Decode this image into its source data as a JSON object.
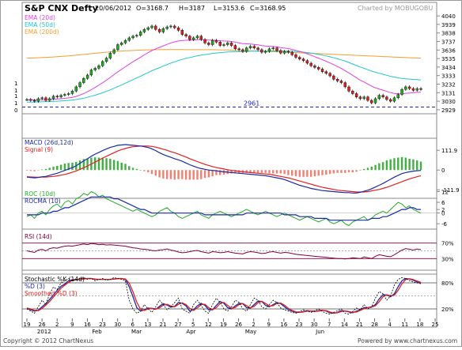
{
  "header": {
    "title": "S&P CNX Defty",
    "date": "20/06/2012",
    "open": "O=3168.7",
    "high": "H=3187",
    "low": "L=3153.6",
    "close": "C=3168.95",
    "credit": "Charted by MOBUGOBU"
  },
  "footer": {
    "copyright": "Copyright © 2012 ChartNexus",
    "powered": "Powered by www.chartnexus.com"
  },
  "colors": {
    "ema20": "#e040e0",
    "ema50": "#20c8c8",
    "ema200": "#f0a030",
    "macd": "#1a2aa8",
    "signal": "#e02020",
    "hist_pos": "#40b040",
    "hist_neg": "#f08070",
    "roc": "#22aa22",
    "rocma": "#1a2aa8",
    "rsi": "#800040",
    "stoch_k": "#000000",
    "stoch_d": "#1a2aa8",
    "stoch_sd": "#e02020",
    "up": "#22aa22",
    "down": "#e02020",
    "support": "#2020c0"
  },
  "chart_data": {
    "type": "line",
    "x_ticks": [
      "19",
      "26",
      "2",
      "9",
      "16",
      "23",
      "30",
      "6",
      "13",
      "21",
      "27",
      "5",
      "12",
      "19",
      "26",
      "2",
      "9",
      "16",
      "23",
      "30",
      "7",
      "14",
      "21",
      "28",
      "4",
      "11",
      "18",
      "25"
    ],
    "x_month_labels": [
      "2012",
      "Feb",
      "Mar",
      "Apr",
      "May",
      "Jun"
    ],
    "price_panel": {
      "legend": [
        "EMA (20d)",
        "EMA (50d)",
        "EMA (200d)"
      ],
      "y_ticks": [
        4040,
        3939,
        3838,
        3737,
        3636,
        3535,
        3434,
        3333,
        3232,
        3131,
        3030,
        2929
      ],
      "ylim": [
        2900,
        4060
      ],
      "left_axis_labels": [
        "1",
        "1",
        "1",
        "1",
        "0"
      ],
      "support_label": "2961",
      "support_value": 2961,
      "closes": [
        3050,
        3040,
        3030,
        3060,
        3070,
        3040,
        3060,
        3090,
        3080,
        3100,
        3110,
        3120,
        3150,
        3200,
        3250,
        3300,
        3340,
        3400,
        3420,
        3450,
        3500,
        3540,
        3600,
        3640,
        3700,
        3720,
        3750,
        3780,
        3800,
        3810,
        3850,
        3880,
        3900,
        3920,
        3880,
        3850,
        3890,
        3910,
        3920,
        3900,
        3870,
        3820,
        3800,
        3760,
        3780,
        3800,
        3760,
        3720,
        3700,
        3750,
        3730,
        3690,
        3700,
        3720,
        3690,
        3650,
        3640,
        3620,
        3660,
        3680,
        3660,
        3640,
        3610,
        3620,
        3650,
        3660,
        3630,
        3600,
        3620,
        3610,
        3580,
        3550,
        3530,
        3510,
        3480,
        3450,
        3430,
        3410,
        3380,
        3360,
        3330,
        3290,
        3270,
        3250,
        3200,
        3150,
        3120,
        3080,
        3060,
        3080,
        3040,
        3010,
        3060,
        3100,
        3080,
        3050,
        3030,
        3070,
        3110,
        3170,
        3200,
        3180,
        3160,
        3180,
        3168.95
      ],
      "ema20": [
        3045,
        3046,
        3045,
        3046,
        3048,
        3048,
        3049,
        3052,
        3055,
        3059,
        3064,
        3069,
        3076,
        3087,
        3103,
        3121,
        3142,
        3167,
        3193,
        3221,
        3249,
        3279,
        3312,
        3344,
        3378,
        3408,
        3438,
        3468,
        3497,
        3524,
        3551,
        3578,
        3605,
        3630,
        3650,
        3667,
        3685,
        3703,
        3720,
        3733,
        3743,
        3748,
        3751,
        3752,
        3755,
        3760,
        3760,
        3757,
        3753,
        3753,
        3751,
        3746,
        3743,
        3742,
        3737,
        3729,
        3721,
        3712,
        3709,
        3707,
        3703,
        3697,
        3689,
        3683,
        3680,
        3678,
        3673,
        3665,
        3659,
        3653,
        3644,
        3632,
        3620,
        3607,
        3591,
        3575,
        3557,
        3540,
        3521,
        3503,
        3484,
        3462,
        3440,
        3418,
        3392,
        3365,
        3337,
        3308,
        3279,
        3257,
        3233,
        3208,
        3189,
        3175,
        3161,
        3146,
        3132,
        3123,
        3117,
        3117,
        3124,
        3127,
        3130,
        3135,
        3138
      ],
      "ema50": [
        3020,
        3020,
        3021,
        3022,
        3024,
        3025,
        3026,
        3028,
        3030,
        3033,
        3036,
        3039,
        3044,
        3050,
        3058,
        3066,
        3076,
        3089,
        3101,
        3115,
        3130,
        3146,
        3164,
        3183,
        3203,
        3222,
        3243,
        3264,
        3285,
        3306,
        3326,
        3348,
        3369,
        3391,
        3410,
        3428,
        3446,
        3463,
        3481,
        3497,
        3512,
        3525,
        3537,
        3547,
        3557,
        3568,
        3576,
        3583,
        3588,
        3596,
        3601,
        3605,
        3609,
        3613,
        3615,
        3617,
        3617,
        3618,
        3619,
        3622,
        3623,
        3624,
        3623,
        3623,
        3624,
        3625,
        3625,
        3624,
        3624,
        3624,
        3622,
        3619,
        3615,
        3611,
        3606,
        3599,
        3592,
        3584,
        3576,
        3566,
        3556,
        3544,
        3532,
        3519,
        3504,
        3488,
        3471,
        3453,
        3435,
        3419,
        3403,
        3386,
        3373,
        3361,
        3349,
        3337,
        3325,
        3315,
        3307,
        3300,
        3296,
        3292,
        3288,
        3285,
        3282
      ],
      "ema200": [
        3540,
        3541,
        3543,
        3545,
        3547,
        3549,
        3551,
        3554,
        3557,
        3560,
        3563,
        3567,
        3571,
        3575,
        3579,
        3584,
        3588,
        3593,
        3598,
        3602,
        3606,
        3610,
        3614,
        3618,
        3622,
        3624,
        3627,
        3629,
        3631,
        3633,
        3635,
        3637,
        3638,
        3639,
        3640,
        3640,
        3641,
        3641,
        3642,
        3642,
        3642,
        3641,
        3640,
        3640,
        3640,
        3640,
        3640,
        3640,
        3640,
        3640,
        3639,
        3638,
        3637,
        3636,
        3634,
        3632,
        3630,
        3628,
        3627,
        3626,
        3625,
        3624,
        3622,
        3620,
        3618,
        3617,
        3615,
        3613,
        3611,
        3609,
        3607,
        3605,
        3603,
        3601,
        3599,
        3597,
        3595,
        3593,
        3591,
        3589,
        3587,
        3585,
        3583,
        3581,
        3579,
        3577,
        3575,
        3573,
        3571,
        3569,
        3567,
        3565,
        3563,
        3561,
        3559,
        3557,
        3555,
        3553,
        3551,
        3549,
        3547,
        3545,
        3543,
        3542,
        3540
      ]
    },
    "macd_panel": {
      "legend": [
        "MACD (26d,12d)",
        "Signal (9)"
      ],
      "y_ticks": [
        111.9,
        0,
        -111.9
      ],
      "ylim": [
        -160,
        180
      ],
      "macd": [
        -40,
        -42,
        -44,
        -42,
        -38,
        -36,
        -30,
        -24,
        -18,
        -10,
        -2,
        6,
        14,
        24,
        38,
        52,
        64,
        78,
        90,
        100,
        110,
        120,
        128,
        134,
        140,
        142,
        144,
        142,
        140,
        138,
        136,
        132,
        128,
        120,
        110,
        98,
        88,
        80,
        72,
        64,
        58,
        50,
        40,
        30,
        22,
        14,
        8,
        4,
        0,
        -2,
        -4,
        -8,
        -10,
        -12,
        -14,
        -16,
        -18,
        -20,
        -22,
        -24,
        -26,
        -28,
        -30,
        -32,
        -36,
        -40,
        -44,
        -48,
        -54,
        -62,
        -70,
        -78,
        -86,
        -92,
        -98,
        -104,
        -108,
        -112,
        -116,
        -118,
        -120,
        -122,
        -124,
        -126,
        -128,
        -128,
        -130,
        -130,
        -126,
        -120,
        -114,
        -106,
        -96,
        -86,
        -76,
        -64,
        -52,
        -40,
        -30,
        -20,
        -14,
        -10,
        -6,
        -4,
        -2
      ],
      "signal": [
        -38,
        -39,
        -40,
        -41,
        -40,
        -40,
        -38,
        -36,
        -33,
        -29,
        -25,
        -19,
        -12,
        -5,
        4,
        13,
        23,
        34,
        45,
        56,
        68,
        78,
        88,
        98,
        108,
        116,
        122,
        128,
        132,
        134,
        136,
        136,
        136,
        134,
        130,
        124,
        118,
        112,
        104,
        98,
        90,
        82,
        74,
        64,
        56,
        48,
        40,
        32,
        26,
        20,
        14,
        10,
        6,
        2,
        -2,
        -4,
        -8,
        -10,
        -12,
        -14,
        -16,
        -18,
        -20,
        -22,
        -24,
        -28,
        -32,
        -36,
        -40,
        -44,
        -50,
        -56,
        -62,
        -68,
        -74,
        -80,
        -86,
        -92,
        -98,
        -102,
        -106,
        -110,
        -114,
        -116,
        -118,
        -120,
        -122,
        -124,
        -124,
        -124,
        -122,
        -118,
        -114,
        -110,
        -104,
        -98,
        -90,
        -82,
        -74,
        -66,
        -58,
        -50,
        -44,
        -38,
        -32
      ]
    },
    "roc_panel": {
      "legend": [
        "ROC (10d)",
        "ROCMA (10)"
      ],
      "y_ticks": [
        12,
        6,
        2,
        0,
        -6
      ],
      "ylim": [
        -9,
        14
      ],
      "roc": [
        -2,
        -1,
        -3,
        0,
        1,
        -1,
        2,
        4,
        5,
        3,
        6,
        7,
        5,
        8,
        9,
        11,
        10,
        12,
        11,
        9,
        10,
        8,
        7,
        6,
        5,
        4,
        3,
        2,
        1,
        2,
        1,
        0,
        -1,
        -2,
        -1,
        1,
        2,
        3,
        1,
        0,
        -2,
        -3,
        -2,
        -1,
        0,
        1,
        -1,
        -2,
        -3,
        -1,
        0,
        1,
        0,
        -1,
        -2,
        -1,
        0,
        1,
        2,
        1,
        0,
        -1,
        0,
        1,
        0,
        -1,
        -2,
        -1,
        0,
        -1,
        -2,
        -3,
        -4,
        -3,
        -2,
        -3,
        -4,
        -5,
        -4,
        -3,
        -5,
        -6,
        -5,
        -4,
        -6,
        -7,
        -5,
        -4,
        -3,
        -2,
        -4,
        -3,
        -1,
        0,
        1,
        0,
        2,
        4,
        6,
        5,
        3,
        4,
        2,
        1,
        0
      ],
      "rocma": [
        -1,
        -1,
        -1,
        -1,
        0,
        0,
        0,
        1,
        1,
        2,
        3,
        3,
        4,
        5,
        6,
        7,
        8,
        9,
        9,
        9,
        9,
        9,
        9,
        8,
        8,
        7,
        6,
        5,
        4,
        3,
        2,
        2,
        1,
        0,
        0,
        0,
        0,
        0,
        0,
        0,
        0,
        0,
        0,
        0,
        0,
        0,
        0,
        -1,
        -1,
        -1,
        -1,
        -1,
        -1,
        -1,
        -1,
        -1,
        -1,
        -1,
        0,
        0,
        0,
        0,
        0,
        0,
        0,
        0,
        0,
        0,
        -1,
        -1,
        -1,
        -1,
        -2,
        -2,
        -2,
        -2,
        -3,
        -3,
        -3,
        -3,
        -4,
        -4,
        -4,
        -4,
        -4,
        -4,
        -4,
        -4,
        -4,
        -4,
        -4,
        -3,
        -3,
        -3,
        -2,
        -2,
        -1,
        0,
        1,
        2,
        2,
        3,
        3,
        2,
        2
      ]
    },
    "rsi_panel": {
      "legend": [
        "RSI (14d)"
      ],
      "y_ticks": [
        "70%",
        "30%"
      ],
      "ylim": [
        0,
        100
      ],
      "rsi": [
        50,
        48,
        46,
        52,
        54,
        50,
        56,
        58,
        57,
        60,
        62,
        63,
        62,
        64,
        66,
        68,
        66,
        69,
        68,
        66,
        67,
        65,
        66,
        65,
        64,
        63,
        62,
        60,
        58,
        57,
        55,
        54,
        53,
        51,
        50,
        52,
        53,
        55,
        52,
        50,
        47,
        45,
        46,
        48,
        50,
        51,
        48,
        46,
        44,
        48,
        47,
        45,
        46,
        48,
        46,
        44,
        43,
        42,
        46,
        48,
        47,
        45,
        43,
        44,
        47,
        48,
        46,
        44,
        46,
        45,
        43,
        41,
        40,
        39,
        38,
        37,
        36,
        35,
        34,
        33,
        32,
        31,
        30,
        30,
        29,
        30,
        32,
        31,
        30,
        34,
        32,
        30,
        36,
        40,
        38,
        36,
        35,
        40,
        46,
        52,
        56,
        54,
        52,
        55,
        53
      ]
    },
    "stoch_panel": {
      "legend": [
        "Stochastic %K (14d)",
        "%D (3)",
        "Smoothed %D (3)"
      ],
      "y_ticks": [
        "80%",
        "20%"
      ],
      "ylim": [
        0,
        100
      ],
      "k": [
        20,
        15,
        10,
        25,
        40,
        30,
        55,
        70,
        65,
        80,
        85,
        90,
        85,
        88,
        90,
        92,
        88,
        90,
        85,
        88,
        90,
        86,
        88,
        92,
        90,
        88,
        85,
        40,
        20,
        10,
        15,
        30,
        20,
        12,
        25,
        40,
        30,
        18,
        25,
        35,
        45,
        20,
        15,
        10,
        30,
        40,
        28,
        15,
        10,
        30,
        45,
        35,
        20,
        15,
        25,
        40,
        35,
        20,
        15,
        30,
        45,
        40,
        25,
        20,
        30,
        40,
        35,
        22,
        18,
        15,
        12,
        10,
        14,
        18,
        15,
        12,
        16,
        20,
        14,
        10,
        8,
        12,
        16,
        20,
        10,
        8,
        14,
        22,
        18,
        30,
        20,
        25,
        45,
        60,
        55,
        40,
        50,
        75,
        88,
        92,
        90,
        85,
        82,
        80,
        78
      ],
      "d": [
        22,
        18,
        15,
        17,
        25,
        32,
        42,
        52,
        63,
        72,
        77,
        85,
        87,
        88,
        88,
        90,
        90,
        90,
        88,
        88,
        88,
        88,
        88,
        89,
        90,
        90,
        88,
        71,
        48,
        23,
        15,
        18,
        22,
        21,
        19,
        26,
        32,
        29,
        24,
        26,
        35,
        33,
        27,
        15,
        18,
        27,
        33,
        28,
        18,
        18,
        28,
        37,
        33,
        23,
        20,
        27,
        33,
        32,
        23,
        22,
        30,
        38,
        37,
        28,
        25,
        30,
        35,
        32,
        25,
        18,
        15,
        12,
        12,
        14,
        16,
        15,
        14,
        16,
        17,
        15,
        11,
        10,
        12,
        16,
        15,
        13,
        11,
        15,
        18,
        23,
        23,
        25,
        30,
        43,
        53,
        52,
        48,
        55,
        71,
        85,
        90,
        89,
        86,
        82,
        80
      ]
    },
    "x_month_positions": [
      [
        3,
        "2012"
      ],
      [
        17,
        "Feb"
      ],
      [
        27,
        "Mar"
      ],
      [
        41,
        "Apr"
      ],
      [
        56,
        "May"
      ],
      [
        74,
        "Jun"
      ]
    ]
  }
}
